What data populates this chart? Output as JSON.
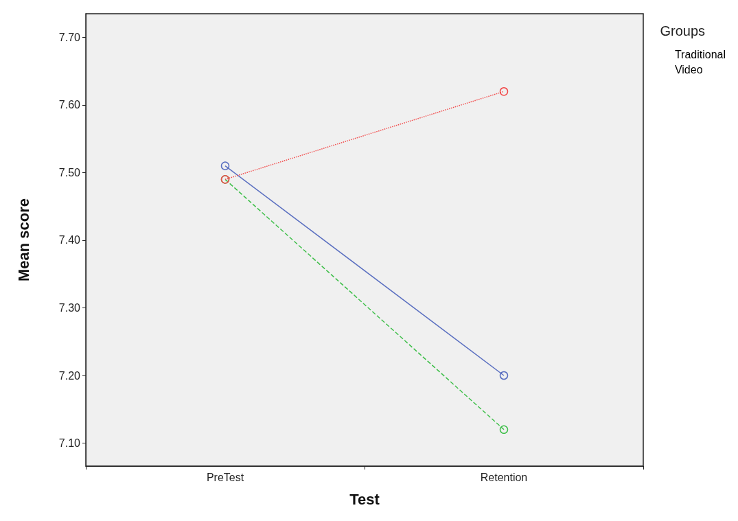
{
  "chart_data": {
    "type": "line",
    "xlabel": "Test",
    "ylabel": "Mean score",
    "legend_title": "Groups",
    "categories": [
      "PreTest",
      "Retention"
    ],
    "series": [
      {
        "name": "Traditional",
        "color": "#5a6fc0",
        "values": [
          7.51,
          7.2
        ],
        "line_style": "solid"
      },
      {
        "name": "Video",
        "color": "#3fbf4a",
        "values": [
          7.49,
          7.12
        ],
        "line_style": "dashed"
      },
      {
        "color": "#f24a4a",
        "values": [
          7.49,
          7.62
        ],
        "line_style": "dotted"
      }
    ],
    "ylim": [
      7.066,
      7.735
    ],
    "yticks": [
      {
        "value": 7.1,
        "label": "7.10"
      },
      {
        "value": 7.2,
        "label": "7.20"
      },
      {
        "value": 7.3,
        "label": "7.30"
      },
      {
        "value": 7.4,
        "label": "7.40"
      },
      {
        "value": 7.5,
        "label": "7.50"
      },
      {
        "value": 7.6,
        "label": "7.60"
      },
      {
        "value": 7.7,
        "label": "7.70"
      }
    ],
    "grid": false,
    "legend": "top right",
    "marker": "circle"
  }
}
